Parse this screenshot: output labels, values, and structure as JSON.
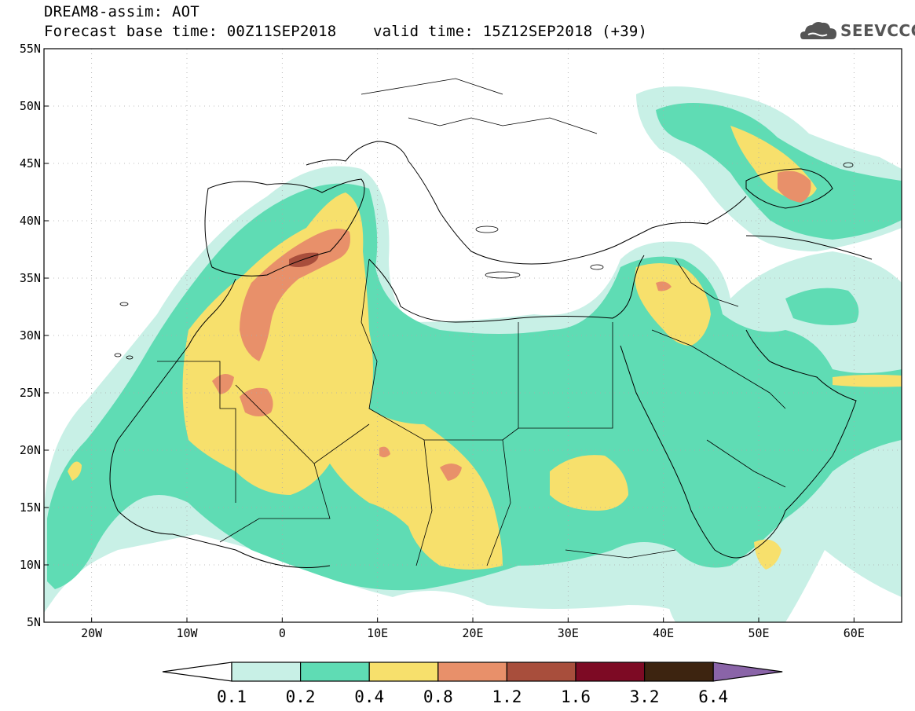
{
  "title": {
    "line1": "DREAM8-assim: AOT",
    "base_label": "Forecast base time: 00Z11SEP2018",
    "valid_label": "valid time: 15Z12SEP2018 (+39)"
  },
  "logo": {
    "text": "SEEVCCC",
    "icon": "cloud-icon",
    "color": "#555555"
  },
  "map": {
    "lon_range": [
      -25,
      65
    ],
    "lat_range": [
      5,
      55
    ],
    "lon_ticks": [
      {
        "value": -20,
        "label": "20W"
      },
      {
        "value": -10,
        "label": "10W"
      },
      {
        "value": 0,
        "label": "0"
      },
      {
        "value": 10,
        "label": "10E"
      },
      {
        "value": 20,
        "label": "20E"
      },
      {
        "value": 30,
        "label": "30E"
      },
      {
        "value": 40,
        "label": "40E"
      },
      {
        "value": 50,
        "label": "50E"
      },
      {
        "value": 60,
        "label": "60E"
      }
    ],
    "lat_ticks": [
      {
        "value": 55,
        "label": "55N"
      },
      {
        "value": 50,
        "label": "50N"
      },
      {
        "value": 45,
        "label": "45N"
      },
      {
        "value": 40,
        "label": "40N"
      },
      {
        "value": 35,
        "label": "35N"
      },
      {
        "value": 30,
        "label": "30N"
      },
      {
        "value": 25,
        "label": "25N"
      },
      {
        "value": 20,
        "label": "20N"
      },
      {
        "value": 15,
        "label": "15N"
      },
      {
        "value": 10,
        "label": "10N"
      },
      {
        "value": 5,
        "label": "5N"
      }
    ]
  },
  "colorbar": {
    "colors": [
      "#c8f0e6",
      "#5fdcb4",
      "#f7e06c",
      "#e8906a",
      "#a84e3c",
      "#7d0a24",
      "#3d2410"
    ],
    "under_color": "#ffffff",
    "over_color": "#8a64a8",
    "labels": [
      "0.1",
      "0.2",
      "0.4",
      "0.8",
      "1.2",
      "1.6",
      "3.2",
      "6.4"
    ]
  }
}
